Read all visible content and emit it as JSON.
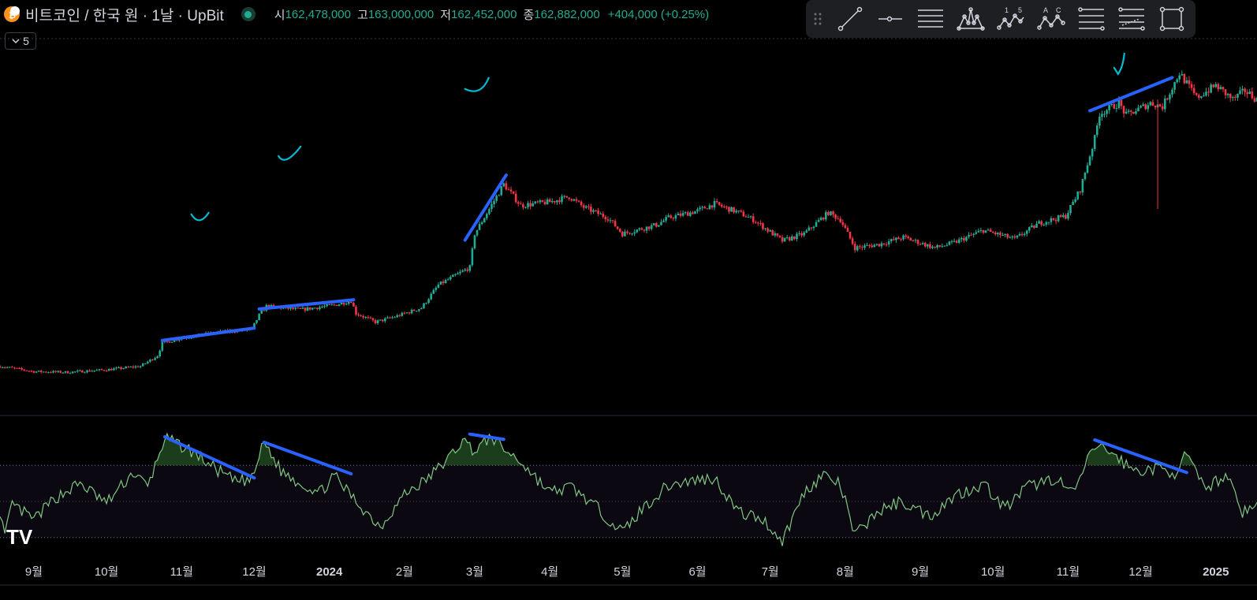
{
  "header": {
    "symbol_title": "비트코인 / 한국 원 · 1날 · UpBit",
    "open_label": "시",
    "open_value": "162,478,000",
    "high_label": "고",
    "high_value": "163,000,000",
    "low_label": "저",
    "low_value": "162,452,000",
    "close_label": "종",
    "close_value": "162,882,000",
    "change_text": "+404,000 (+0.25%)"
  },
  "interval_toggle": {
    "label": "5",
    "icon": "chevron-down-icon"
  },
  "toolbar": {
    "tools": [
      {
        "name": "trend-line-tool-icon"
      },
      {
        "name": "horizontal-ray-tool-icon"
      },
      {
        "name": "horizontal-lines-tool-icon"
      },
      {
        "name": "pattern-tool-icon"
      },
      {
        "name": "elliott-wave-tool-icon"
      },
      {
        "name": "abcd-pattern-tool-icon"
      },
      {
        "name": "fib-retracement-tool-icon"
      },
      {
        "name": "fib-extension-tool-icon"
      },
      {
        "name": "rectangle-tool-icon"
      }
    ],
    "elliott_labels": [
      "1",
      "5"
    ],
    "abcd_labels": [
      "A",
      "C"
    ]
  },
  "colors": {
    "background": "#000000",
    "up_candle": "#22ab94",
    "down_candle": "#f23645",
    "trendline": "#2962ff",
    "annotation": "#00bcd4",
    "rsi_line": "#81c784",
    "rsi_band": "#7e57c2",
    "text": "#d1d4dc"
  },
  "watermark": "TV",
  "chart_data": [
    {
      "type": "candlestick",
      "series_name": "비트코인 / 한국 원",
      "x_axis_ticks": [
        "9월",
        "10월",
        "11월",
        "12월",
        "2024",
        "2월",
        "3월",
        "4월",
        "5월",
        "6월",
        "7월",
        "8월",
        "9월",
        "10월",
        "11월",
        "12월",
        "2025"
      ],
      "x_range": [
        "2023-08-18",
        "2025-01-18"
      ],
      "price_path": [
        [
          "2023-08-18",
          38.5
        ],
        [
          "2023-09-01",
          37.0
        ],
        [
          "2023-09-15",
          36.8
        ],
        [
          "2023-10-01",
          37.5
        ],
        [
          "2023-10-15",
          38.5
        ],
        [
          "2023-10-22",
          41.5
        ],
        [
          "2023-10-24",
          45.0
        ],
        [
          "2023-11-01",
          46.5
        ],
        [
          "2023-11-15",
          48.0
        ],
        [
          "2023-11-30",
          49.0
        ],
        [
          "2023-12-03",
          53.0
        ],
        [
          "2023-12-06",
          55.5
        ],
        [
          "2023-12-20",
          54.5
        ],
        [
          "2024-01-03",
          55.8
        ],
        [
          "2024-01-10",
          57.0
        ],
        [
          "2024-01-12",
          53.5
        ],
        [
          "2024-01-20",
          51.0
        ],
        [
          "2024-01-28",
          52.5
        ],
        [
          "2024-02-08",
          55.0
        ],
        [
          "2024-02-15",
          61.5
        ],
        [
          "2024-02-28",
          66.5
        ],
        [
          "2024-03-01",
          76.0
        ],
        [
          "2024-03-13",
          90.0
        ],
        [
          "2024-03-20",
          84.0
        ],
        [
          "2024-04-01",
          85.0
        ],
        [
          "2024-04-09",
          86.5
        ],
        [
          "2024-04-15",
          83.5
        ],
        [
          "2024-04-25",
          80.5
        ],
        [
          "2024-05-01",
          76.0
        ],
        [
          "2024-05-15",
          78.5
        ],
        [
          "2024-05-20",
          80.5
        ],
        [
          "2024-06-01",
          82.5
        ],
        [
          "2024-06-08",
          84.5
        ],
        [
          "2024-06-18",
          82.0
        ],
        [
          "2024-06-24",
          80.0
        ],
        [
          "2024-07-06",
          74.0
        ],
        [
          "2024-07-15",
          76.0
        ],
        [
          "2024-07-25",
          82.0
        ],
        [
          "2024-07-30",
          80.0
        ],
        [
          "2024-08-05",
          72.0
        ],
        [
          "2024-08-15",
          73.0
        ],
        [
          "2024-08-25",
          75.0
        ],
        [
          "2024-09-07",
          72.0
        ],
        [
          "2024-09-15",
          73.5
        ],
        [
          "2024-09-27",
          77.0
        ],
        [
          "2024-10-10",
          74.5
        ],
        [
          "2024-10-20",
          79.0
        ],
        [
          "2024-10-31",
          81.0
        ],
        [
          "2024-11-06",
          88.5
        ],
        [
          "2024-11-12",
          103.0
        ],
        [
          "2024-11-14",
          110.0
        ],
        [
          "2024-11-22",
          113.0
        ],
        [
          "2024-11-25",
          109.5
        ],
        [
          "2024-12-05",
          113.0
        ],
        [
          "2024-12-10",
          112.0
        ],
        [
          "2024-12-17",
          121.5
        ],
        [
          "2024-12-24",
          114.5
        ],
        [
          "2025-01-01",
          118.0
        ],
        [
          "2025-01-08",
          114.0
        ],
        [
          "2025-01-13",
          116.5
        ],
        [
          "2025-01-18",
          114.0
        ]
      ]
    },
    {
      "type": "line",
      "series_name": "RSI",
      "band": [
        30,
        70
      ],
      "rsi_path": [
        [
          "2023-08-18",
          45
        ],
        [
          "2023-08-20",
          30
        ],
        [
          "2023-08-23",
          48
        ],
        [
          "2023-09-01",
          40
        ],
        [
          "2023-09-10",
          52
        ],
        [
          "2023-09-20",
          60
        ],
        [
          "2023-10-01",
          49
        ],
        [
          "2023-10-12",
          66
        ],
        [
          "2023-10-18",
          58
        ],
        [
          "2023-10-25",
          85
        ],
        [
          "2023-11-05",
          78
        ],
        [
          "2023-11-15",
          68
        ],
        [
          "2023-11-23",
          61
        ],
        [
          "2023-11-30",
          62
        ],
        [
          "2023-12-05",
          83
        ],
        [
          "2023-12-12",
          67
        ],
        [
          "2023-12-20",
          60
        ],
        [
          "2023-12-28",
          55
        ],
        [
          "2024-01-03",
          64
        ],
        [
          "2024-01-12",
          50
        ],
        [
          "2024-01-22",
          36
        ],
        [
          "2024-02-01",
          54
        ],
        [
          "2024-02-10",
          62
        ],
        [
          "2024-02-20",
          75
        ],
        [
          "2024-02-25",
          84
        ],
        [
          "2024-03-01",
          78
        ],
        [
          "2024-03-08",
          86
        ],
        [
          "2024-03-12",
          80
        ],
        [
          "2024-03-20",
          72
        ],
        [
          "2024-04-01",
          55
        ],
        [
          "2024-04-10",
          58
        ],
        [
          "2024-04-20",
          47
        ],
        [
          "2024-05-01",
          33
        ],
        [
          "2024-05-10",
          47
        ],
        [
          "2024-05-20",
          59
        ],
        [
          "2024-06-01",
          62
        ],
        [
          "2024-06-08",
          63
        ],
        [
          "2024-06-18",
          44
        ],
        [
          "2024-06-28",
          40
        ],
        [
          "2024-07-06",
          28
        ],
        [
          "2024-07-15",
          55
        ],
        [
          "2024-07-23",
          65
        ],
        [
          "2024-07-30",
          59
        ],
        [
          "2024-08-05",
          31
        ],
        [
          "2024-08-14",
          44
        ],
        [
          "2024-08-24",
          50
        ],
        [
          "2024-09-05",
          42
        ],
        [
          "2024-09-15",
          53
        ],
        [
          "2024-09-27",
          60
        ],
        [
          "2024-10-06",
          46
        ],
        [
          "2024-10-15",
          58
        ],
        [
          "2024-10-27",
          63
        ],
        [
          "2024-11-03",
          54
        ],
        [
          "2024-11-12",
          81
        ],
        [
          "2024-11-18",
          78
        ],
        [
          "2024-11-28",
          67
        ],
        [
          "2024-12-08",
          68
        ],
        [
          "2024-12-15",
          66
        ],
        [
          "2024-12-20",
          76
        ],
        [
          "2024-12-27",
          57
        ],
        [
          "2025-01-06",
          65
        ],
        [
          "2025-01-12",
          44
        ],
        [
          "2025-01-18",
          48
        ]
      ]
    }
  ],
  "drawings": {
    "price_trendlines": [
      [
        [
          "2023-10-24",
          45.8
        ],
        [
          "2023-12-01",
          49.3
        ]
      ],
      [
        [
          "2023-12-03",
          54.7
        ],
        [
          "2024-01-11",
          57.3
        ]
      ],
      [
        [
          "2024-02-26",
          74.2
        ],
        [
          "2024-03-14",
          92.6
        ]
      ],
      [
        [
          "2024-11-10",
          110.8
        ],
        [
          "2024-12-14",
          120.2
        ]
      ]
    ],
    "rsi_trendlines": [
      [
        [
          "2023-10-25",
          85.8
        ],
        [
          "2023-12-01",
          63.0
        ]
      ],
      [
        [
          "2023-12-05",
          82.8
        ],
        [
          "2024-01-10",
          65.3
        ]
      ],
      [
        [
          "2024-02-28",
          87.3
        ],
        [
          "2024-03-13",
          84.4
        ]
      ],
      [
        [
          "2024-11-12",
          84.1
        ],
        [
          "2024-12-20",
          66.0
        ]
      ]
    ]
  }
}
